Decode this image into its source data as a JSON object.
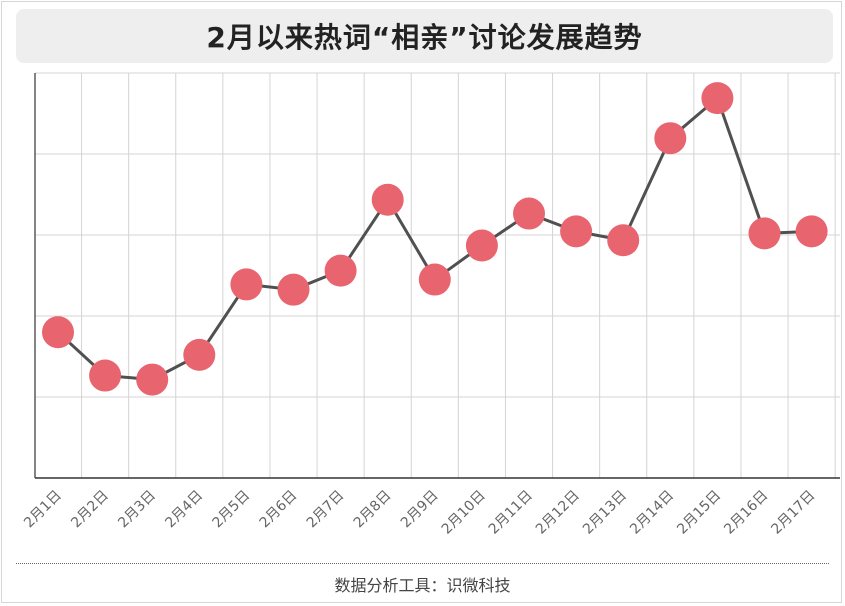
{
  "chart_data": {
    "type": "line",
    "title": "2月以来热词“相亲”讨论发展趋势",
    "xlabel": "",
    "ylabel": "",
    "categories": [
      "2月1日",
      "2月2日",
      "2月3日",
      "2月4日",
      "2月5日",
      "2月6日",
      "2月7日",
      "2月8日",
      "2月9日",
      "2月10日",
      "2月11日",
      "2月12日",
      "2月13日",
      "2月14日",
      "2月15日",
      "2月16日",
      "2月17日"
    ],
    "series": [
      {
        "values": [
          36.0,
          25.3,
          24.3,
          30.4,
          47.8,
          46.5,
          51.2,
          68.7,
          49.0,
          57.4,
          65.3,
          60.9,
          58.7,
          83.9,
          93.8,
          60.4,
          60.9
        ]
      }
    ],
    "ylim": [
      0,
      100
    ],
    "y_gridlines": 5,
    "grid": true,
    "colors": {
      "line": "#505050",
      "marker": "#e8646e",
      "grid": "#d4d4d4",
      "axis": "#333333"
    }
  },
  "footer": {
    "source": "数据分析工具：识微科技"
  }
}
